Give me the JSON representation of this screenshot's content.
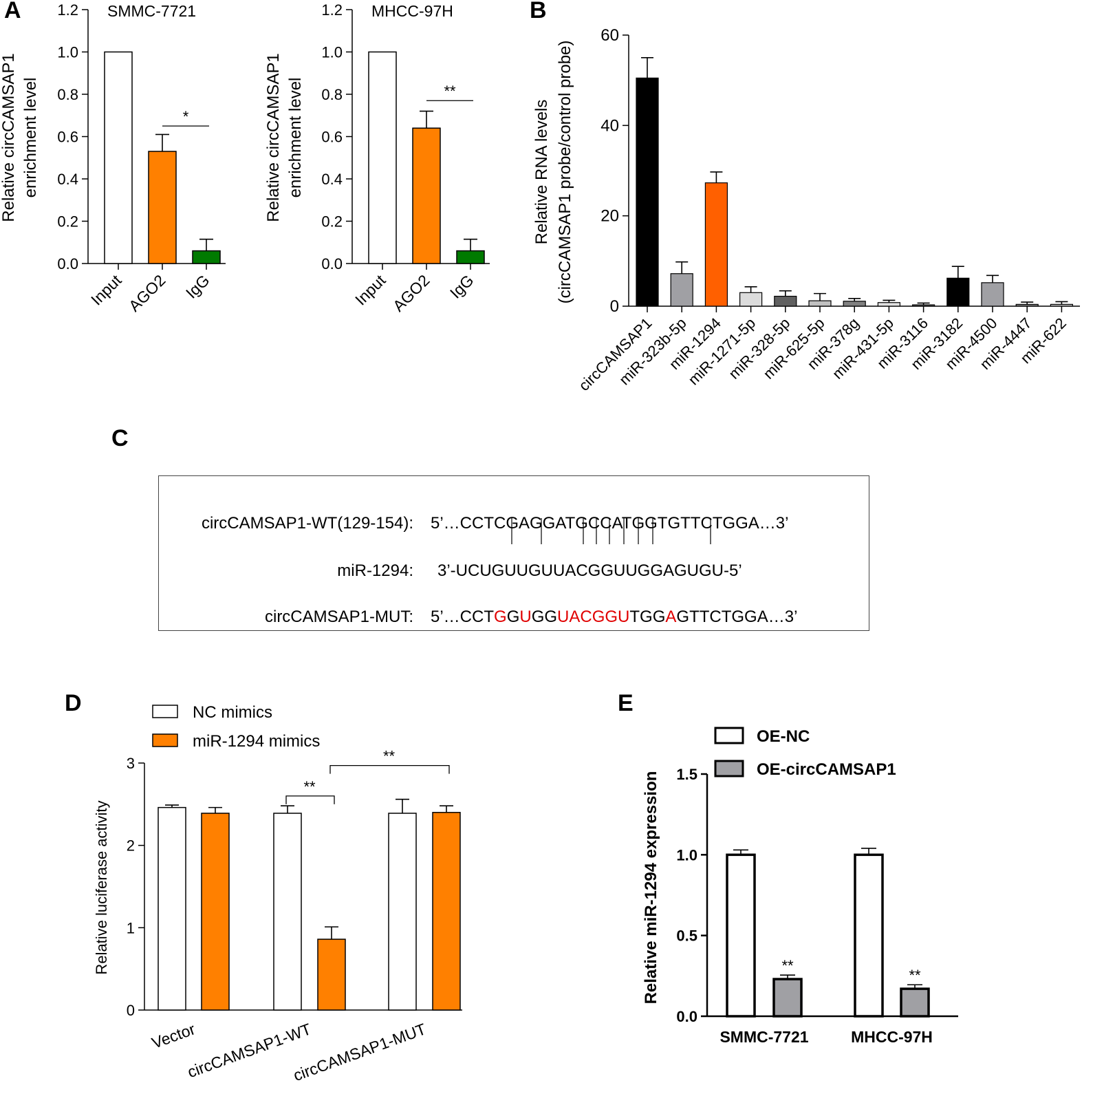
{
  "panels": {
    "A": "A",
    "B": "B",
    "C": "C",
    "D": "D",
    "E": "E"
  },
  "colors": {
    "white": "#ffffff",
    "orange": "#ff8000",
    "green": "#007a00",
    "black": "#000000",
    "mut_red": "#e00000",
    "grey": "#a0a0a4"
  },
  "chart_data": [
    {
      "id": "A1",
      "type": "bar",
      "title": "SMMC-7721",
      "ylabel": [
        "Relative circCAMSAP1",
        "enrichment level"
      ],
      "xlabel": "",
      "ylim": [
        0,
        1.2
      ],
      "yticks": [
        "0.0",
        "0.2",
        "0.4",
        "0.6",
        "0.8",
        "1.0",
        "1.2"
      ],
      "categories": [
        "Input",
        "AGO2",
        "IgG"
      ],
      "values": [
        1.0,
        0.53,
        0.06
      ],
      "errors": [
        0,
        0.08,
        0.055
      ],
      "colors": [
        "#ffffff",
        "#ff8000",
        "#007a00"
      ],
      "significance": [
        {
          "from": 1,
          "to": 2,
          "y": 0.65,
          "label": "*"
        }
      ]
    },
    {
      "id": "A2",
      "type": "bar",
      "title": "MHCC-97H",
      "ylabel": [
        "Relative circCAMSAP1",
        "enrichment level"
      ],
      "xlabel": "",
      "ylim": [
        0,
        1.2
      ],
      "yticks": [
        "0.0",
        "0.2",
        "0.4",
        "0.6",
        "0.8",
        "1.0",
        "1.2"
      ],
      "categories": [
        "Input",
        "AGO2",
        "IgG"
      ],
      "values": [
        1.0,
        0.64,
        0.06
      ],
      "errors": [
        0,
        0.08,
        0.055
      ],
      "colors": [
        "#ffffff",
        "#ff8000",
        "#007a00"
      ],
      "significance": [
        {
          "from": 1,
          "to": 2,
          "y": 0.77,
          "label": "**"
        }
      ]
    },
    {
      "id": "B",
      "type": "bar",
      "title": "",
      "ylabel": [
        "Relative RNA levels",
        "(circCAMSAP1 probe/control probe)"
      ],
      "xlabel": "",
      "ylim": [
        0,
        60
      ],
      "yticks": [
        "0",
        "20",
        "40",
        "60"
      ],
      "categories": [
        "circCAMSAP1",
        "miR-323b-5p",
        "miR-1294",
        "miR-1271-5p",
        "miR-328-5p",
        "miR-625-5p",
        "miR-378g",
        "miR-431-5p",
        "miR-3116",
        "miR-3182",
        "miR-4500",
        "miR-4447",
        "miR-622"
      ],
      "values": [
        50.5,
        7.2,
        27.3,
        3.0,
        2.2,
        1.2,
        1.1,
        0.8,
        0.3,
        6.2,
        5.2,
        0.4,
        0.4
      ],
      "errors": [
        4.5,
        2.6,
        2.4,
        1.3,
        1.2,
        1.6,
        0.6,
        0.5,
        0.4,
        2.6,
        1.6,
        0.5,
        0.6
      ],
      "colors": [
        "#000000",
        "#a0a0a4",
        "#ff6000",
        "#dcdcdc",
        "#606060",
        "#c0c0c0",
        "#808080",
        "#e0e0e0",
        "#606060",
        "#000000",
        "#a0a0a4",
        "#808080",
        "#c0c0c0"
      ]
    },
    {
      "id": "D",
      "type": "bar",
      "title": "",
      "ylabel": "Relative luciferase activity",
      "xlabel": "",
      "ylim": [
        0,
        3
      ],
      "yticks": [
        "0",
        "1",
        "2",
        "3"
      ],
      "categories": [
        "Vector",
        "circCAMSAP1-WT",
        "circCAMSAP1-MUT"
      ],
      "series": [
        {
          "name": "NC mimics",
          "color": "#ffffff",
          "values": [
            2.46,
            2.39,
            2.39
          ],
          "errors": [
            0.03,
            0.09,
            0.17
          ]
        },
        {
          "name": "miR-1294 mimics",
          "color": "#ff8000",
          "values": [
            2.39,
            0.86,
            2.4
          ],
          "errors": [
            0.07,
            0.15,
            0.08
          ]
        }
      ],
      "legend": "top-left",
      "significance": [
        {
          "from": [
            1,
            0
          ],
          "to": [
            1,
            1
          ],
          "y": 2.6,
          "label": "**"
        },
        {
          "from": [
            1,
            1
          ],
          "to": [
            2,
            1
          ],
          "y": 2.97,
          "label": "**"
        }
      ]
    },
    {
      "id": "E",
      "type": "bar",
      "title": "",
      "ylabel": "Relative miR-1294 expression",
      "xlabel": "",
      "ylim": [
        0,
        1.5
      ],
      "yticks": [
        "0.0",
        "0.5",
        "1.0",
        "1.5"
      ],
      "categories": [
        "SMMC-7721",
        "MHCC-97H"
      ],
      "series": [
        {
          "name": "OE-NC",
          "color": "#ffffff",
          "values": [
            1.0,
            1.0
          ],
          "errors": [
            0.03,
            0.04
          ]
        },
        {
          "name": "OE-circCAMSAP1",
          "color": "#a0a0a4",
          "values": [
            0.23,
            0.17
          ],
          "errors": [
            0.025,
            0.025
          ]
        }
      ],
      "legend": "top-left",
      "stars": [
        "**",
        "**"
      ]
    }
  ],
  "sequences": {
    "wt_label": "circCAMSAP1-WT(129-154):",
    "wt_seq": "5’…CCTCGAGGATGCCATGGTGTTCTGGA…3’",
    "mir_label": "miR-1294:",
    "mir_seq": "3’-UCUGUUGUUACGGUUGGAGUGU-5’",
    "mut_label": "circCAMSAP1-MUT:",
    "mut_parts": [
      {
        "text": "5’…CCT",
        "mut": false
      },
      {
        "text": "G",
        "mut": true
      },
      {
        "text": "G",
        "mut": false
      },
      {
        "text": "U",
        "mut": true
      },
      {
        "text": "GG",
        "mut": false
      },
      {
        "text": "UACGGU",
        "mut": true
      },
      {
        "text": "TGG",
        "mut": false
      },
      {
        "text": "A",
        "mut": true
      },
      {
        "text": "GTTCTGGA…3’",
        "mut": false
      }
    ]
  }
}
